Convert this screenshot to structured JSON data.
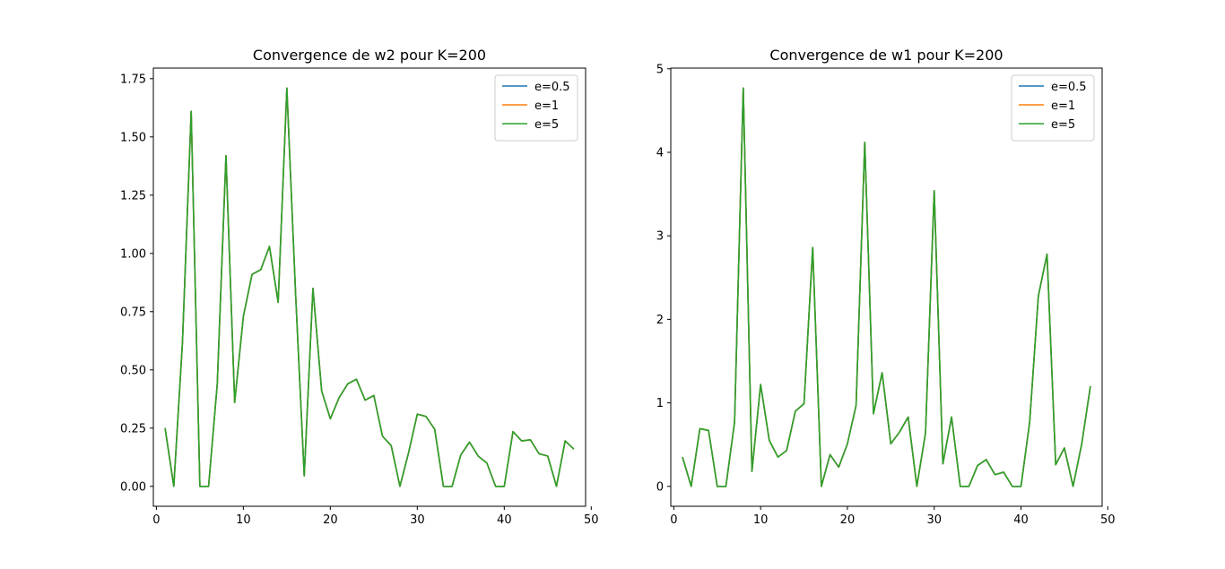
{
  "chart_data": [
    {
      "type": "line",
      "title": "Convergence de w2 pour K=200",
      "xlabel": "",
      "ylabel": "",
      "xlim": [
        -0.35,
        49.35
      ],
      "ylim": [
        -0.0855,
        1.7955
      ],
      "xticks": [
        0,
        10,
        20,
        30,
        40,
        50
      ],
      "yticks": [
        0.0,
        0.25,
        0.5,
        0.75,
        1.0,
        1.25,
        1.5,
        1.75
      ],
      "ytick_labels": [
        "0.00",
        "0.25",
        "0.50",
        "0.75",
        "1.00",
        "1.25",
        "1.50",
        "1.75"
      ],
      "grid": false,
      "legend_position": "top-right",
      "x": [
        1,
        2,
        3,
        4,
        5,
        6,
        7,
        8,
        9,
        10,
        11,
        12,
        13,
        14,
        15,
        16,
        17,
        18,
        19,
        20,
        21,
        22,
        23,
        24,
        25,
        26,
        27,
        28,
        29,
        30,
        31,
        32,
        33,
        34,
        35,
        36,
        37,
        38,
        39,
        40,
        41,
        42,
        43,
        44,
        45,
        46,
        47,
        48
      ],
      "series": [
        {
          "name": "e=0.5",
          "color": "#1f77b4",
          "values": [
            0.25,
            0.0,
            0.62,
            1.61,
            0.0,
            0.0,
            0.44,
            1.42,
            0.36,
            0.73,
            0.91,
            0.93,
            1.03,
            0.79,
            1.71,
            0.83,
            0.045,
            0.85,
            0.41,
            0.29,
            0.38,
            0.44,
            0.46,
            0.37,
            0.39,
            0.215,
            0.175,
            0.0,
            0.145,
            0.31,
            0.3,
            0.245,
            0.0,
            0.0,
            0.135,
            0.19,
            0.13,
            0.1,
            0.0,
            0.0,
            0.235,
            0.195,
            0.2,
            0.14,
            0.13,
            0.0,
            0.195,
            0.16
          ]
        },
        {
          "name": "e=1",
          "color": "#ff7f0e",
          "values": [
            0.25,
            0.0,
            0.62,
            1.61,
            0.0,
            0.0,
            0.44,
            1.42,
            0.36,
            0.73,
            0.91,
            0.93,
            1.03,
            0.79,
            1.71,
            0.83,
            0.045,
            0.85,
            0.41,
            0.29,
            0.38,
            0.44,
            0.46,
            0.37,
            0.39,
            0.215,
            0.175,
            0.0,
            0.145,
            0.31,
            0.3,
            0.245,
            0.0,
            0.0,
            0.135,
            0.19,
            0.13,
            0.1,
            0.0,
            0.0,
            0.235,
            0.195,
            0.2,
            0.14,
            0.13,
            0.0,
            0.195,
            0.16
          ]
        },
        {
          "name": "e=5",
          "color": "#2ca02c",
          "values": [
            0.25,
            0.0,
            0.62,
            1.61,
            0.0,
            0.0,
            0.44,
            1.42,
            0.36,
            0.73,
            0.91,
            0.93,
            1.03,
            0.79,
            1.71,
            0.83,
            0.045,
            0.85,
            0.41,
            0.29,
            0.38,
            0.44,
            0.46,
            0.37,
            0.39,
            0.215,
            0.175,
            0.0,
            0.145,
            0.31,
            0.3,
            0.245,
            0.0,
            0.0,
            0.135,
            0.19,
            0.13,
            0.1,
            0.0,
            0.0,
            0.235,
            0.195,
            0.2,
            0.14,
            0.13,
            0.0,
            0.195,
            0.16
          ]
        }
      ]
    },
    {
      "type": "line",
      "title": "Convergence de w1 pour K=200",
      "xlabel": "",
      "ylabel": "",
      "xlim": [
        -0.35,
        49.35
      ],
      "ylim": [
        -0.2385,
        5.0085
      ],
      "xticks": [
        0,
        10,
        20,
        30,
        40,
        50
      ],
      "yticks": [
        0,
        1,
        2,
        3,
        4,
        5
      ],
      "ytick_labels": [
        "0",
        "1",
        "2",
        "3",
        "4",
        "5"
      ],
      "grid": false,
      "legend_position": "top-right",
      "x": [
        1,
        2,
        3,
        4,
        5,
        6,
        7,
        8,
        9,
        10,
        11,
        12,
        13,
        14,
        15,
        16,
        17,
        18,
        19,
        20,
        21,
        22,
        23,
        24,
        25,
        26,
        27,
        28,
        29,
        30,
        31,
        32,
        33,
        34,
        35,
        36,
        37,
        38,
        39,
        40,
        41,
        42,
        43,
        44,
        45,
        46,
        47,
        48
      ],
      "series": [
        {
          "name": "e=0.5",
          "color": "#1f77b4",
          "values": [
            0.35,
            0.0,
            0.69,
            0.67,
            0.0,
            0.0,
            0.77,
            4.77,
            0.18,
            1.22,
            0.55,
            0.35,
            0.43,
            0.9,
            0.99,
            2.86,
            0.0,
            0.38,
            0.23,
            0.51,
            0.97,
            4.12,
            0.87,
            1.36,
            0.51,
            0.65,
            0.83,
            0.0,
            0.64,
            3.54,
            0.27,
            0.83,
            0.0,
            0.0,
            0.25,
            0.32,
            0.14,
            0.17,
            0.0,
            0.0,
            0.77,
            2.28,
            2.78,
            0.26,
            0.46,
            0.0,
            0.51,
            1.2
          ]
        },
        {
          "name": "e=1",
          "color": "#ff7f0e",
          "values": [
            0.35,
            0.0,
            0.69,
            0.67,
            0.0,
            0.0,
            0.77,
            4.77,
            0.18,
            1.22,
            0.55,
            0.35,
            0.43,
            0.9,
            0.99,
            2.86,
            0.0,
            0.38,
            0.23,
            0.51,
            0.97,
            4.12,
            0.87,
            1.36,
            0.51,
            0.65,
            0.83,
            0.0,
            0.64,
            3.54,
            0.27,
            0.83,
            0.0,
            0.0,
            0.25,
            0.32,
            0.14,
            0.17,
            0.0,
            0.0,
            0.77,
            2.28,
            2.78,
            0.26,
            0.46,
            0.0,
            0.51,
            1.2
          ]
        },
        {
          "name": "e=5",
          "color": "#2ca02c",
          "values": [
            0.35,
            0.0,
            0.69,
            0.67,
            0.0,
            0.0,
            0.77,
            4.77,
            0.18,
            1.22,
            0.55,
            0.35,
            0.43,
            0.9,
            0.99,
            2.86,
            0.0,
            0.38,
            0.23,
            0.51,
            0.97,
            4.12,
            0.87,
            1.36,
            0.51,
            0.65,
            0.83,
            0.0,
            0.64,
            3.54,
            0.27,
            0.83,
            0.0,
            0.0,
            0.25,
            0.32,
            0.14,
            0.17,
            0.0,
            0.0,
            0.77,
            2.28,
            2.78,
            0.26,
            0.46,
            0.0,
            0.51,
            1.2
          ]
        }
      ]
    }
  ]
}
